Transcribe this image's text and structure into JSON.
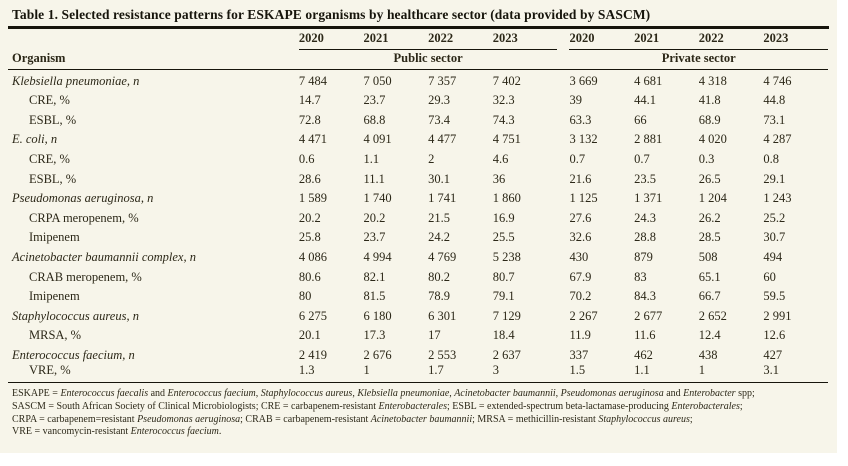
{
  "colors": {
    "panel_bg": "#f7f5ea",
    "text": "#2c2818",
    "rule": "#17150c"
  },
  "table": {
    "title": "Table 1. Selected resistance patterns for ESKAPE organisms by healthcare sector (data provided by SASCM)",
    "header": {
      "organism_label": "Organism",
      "public_sector_label": "Public sector",
      "private_sector_label": "Private sector",
      "years_public": [
        "2020",
        "2021",
        "2022",
        "2023"
      ],
      "years_private": [
        "2020",
        "2021",
        "2022",
        "2023"
      ]
    },
    "rows": [
      {
        "label": "Klebsiella pneumoniae, n",
        "italic": true,
        "indent": false,
        "public": [
          "7 484",
          "7 050",
          "7 357",
          "7 402"
        ],
        "private": [
          "3 669",
          "4 681",
          "4 318",
          "4 746"
        ]
      },
      {
        "label": "CRE, %",
        "italic": false,
        "indent": true,
        "public": [
          "14.7",
          "23.7",
          "29.3",
          "32.3"
        ],
        "private": [
          "39",
          "44.1",
          "41.8",
          "44.8"
        ]
      },
      {
        "label": "ESBL, %",
        "italic": false,
        "indent": true,
        "public": [
          "72.8",
          "68.8",
          "73.4",
          "74.3"
        ],
        "private": [
          "63.3",
          "66",
          "68.9",
          "73.1"
        ]
      },
      {
        "label": "E. coli, n",
        "italic": true,
        "indent": false,
        "public": [
          "4 471",
          "4 091",
          "4 477",
          "4 751"
        ],
        "private": [
          "3 132",
          "2 881",
          "4 020",
          "4 287"
        ]
      },
      {
        "label": "CRE, %",
        "italic": false,
        "indent": true,
        "public": [
          "0.6",
          "1.1",
          "2",
          "4.6"
        ],
        "private": [
          "0.7",
          "0.7",
          "0.3",
          "0.8"
        ]
      },
      {
        "label": "ESBL, %",
        "italic": false,
        "indent": true,
        "public": [
          "28.6",
          "11.1",
          "30.1",
          "36"
        ],
        "private": [
          "21.6",
          "23.5",
          "26.5",
          "29.1"
        ]
      },
      {
        "label": "Pseudomonas aeruginosa, n",
        "italic": true,
        "indent": false,
        "public": [
          "1 589",
          "1 740",
          "1 741",
          "1 860"
        ],
        "private": [
          "1 125",
          "1 371",
          "1 204",
          "1 243"
        ]
      },
      {
        "label": "CRPA meropenem, %",
        "italic": false,
        "indent": true,
        "public": [
          "20.2",
          "20.2",
          "21.5",
          "16.9"
        ],
        "private": [
          "27.6",
          "24.3",
          "26.2",
          "25.2"
        ]
      },
      {
        "label": "Imipenem",
        "italic": false,
        "indent": true,
        "public": [
          "25.8",
          "23.7",
          "24.2",
          "25.5"
        ],
        "private": [
          "32.6",
          "28.8",
          "28.5",
          "30.7"
        ]
      },
      {
        "label": "Acinetobacter baumannii complex, n",
        "italic": true,
        "indent": false,
        "public": [
          "4 086",
          "4 994",
          "4 769",
          "5 238"
        ],
        "private": [
          "430",
          "879",
          "508",
          "494"
        ]
      },
      {
        "label": "CRAB meropenem, %",
        "italic": false,
        "indent": true,
        "public": [
          "80.6",
          "82.1",
          "80.2",
          "80.7"
        ],
        "private": [
          "67.9",
          "83",
          "65.1",
          "60"
        ]
      },
      {
        "label": "Imipenem",
        "italic": false,
        "indent": true,
        "public": [
          "80",
          "81.5",
          "78.9",
          "79.1"
        ],
        "private": [
          "70.2",
          "84.3",
          "66.7",
          "59.5"
        ]
      },
      {
        "label": "Staphylococcus aureus, n",
        "italic": true,
        "indent": false,
        "public": [
          "6 275",
          "6 180",
          "6 301",
          "7 129"
        ],
        "private": [
          "2 267",
          "2 677",
          "2 652",
          "2 991"
        ]
      },
      {
        "label": "MRSA, %",
        "italic": false,
        "indent": true,
        "public": [
          "20.1",
          "17.3",
          "17",
          "18.4"
        ],
        "private": [
          "11.9",
          "11.6",
          "12.4",
          "12.6"
        ]
      },
      {
        "label": "Enterococcus faecium, n",
        "italic": true,
        "indent": false,
        "public": [
          "2 419",
          "2 676",
          "2 553",
          "2 637"
        ],
        "private": [
          "337",
          "462",
          "438",
          "427"
        ]
      },
      {
        "label": "VRE, %",
        "italic": false,
        "indent": true,
        "public": [
          "1.3",
          "1",
          "1.7",
          "3"
        ],
        "private": [
          "1.5",
          "1.1",
          "1",
          "3.1"
        ]
      }
    ]
  },
  "footnotes": [
    {
      "segments": [
        {
          "text": "ESKAPE = "
        },
        {
          "text": "Enterococcus faecalis",
          "italic": true
        },
        {
          "text": " and "
        },
        {
          "text": "Enterococcus faecium",
          "italic": true
        },
        {
          "text": ", "
        },
        {
          "text": "Staphylococcus aureus",
          "italic": true
        },
        {
          "text": ", "
        },
        {
          "text": "Klebsiella pneumoniae",
          "italic": true
        },
        {
          "text": ", "
        },
        {
          "text": "Acinetobacter baumannii",
          "italic": true
        },
        {
          "text": ", "
        },
        {
          "text": "Pseudomonas aeruginosa",
          "italic": true
        },
        {
          "text": " and "
        },
        {
          "text": "Enterobacter",
          "italic": true
        },
        {
          "text": " spp;"
        }
      ]
    },
    {
      "segments": [
        {
          "text": "SASCM = South African Society of Clinical Microbiologists; CRE = carbapenem-resistant "
        },
        {
          "text": "Enterobacterales",
          "italic": true
        },
        {
          "text": "; ESBL = extended-spectrum beta-lactamase-producing "
        },
        {
          "text": "Enterobacterales",
          "italic": true
        },
        {
          "text": ";"
        }
      ]
    },
    {
      "segments": [
        {
          "text": "CRPA = carbapenem=resistant "
        },
        {
          "text": "Pseudomonas aeruginosa",
          "italic": true
        },
        {
          "text": "; CRAB = carbapenem-resistant "
        },
        {
          "text": "Acinetobacter baumannii",
          "italic": true
        },
        {
          "text": "; MRSA = methicillin-resistant "
        },
        {
          "text": "Staphylococcus aureus",
          "italic": true
        },
        {
          "text": ";"
        }
      ]
    },
    {
      "segments": [
        {
          "text": "VRE = vancomycin-resistant "
        },
        {
          "text": "Enterococcus faecium",
          "italic": true
        },
        {
          "text": "."
        }
      ]
    }
  ]
}
